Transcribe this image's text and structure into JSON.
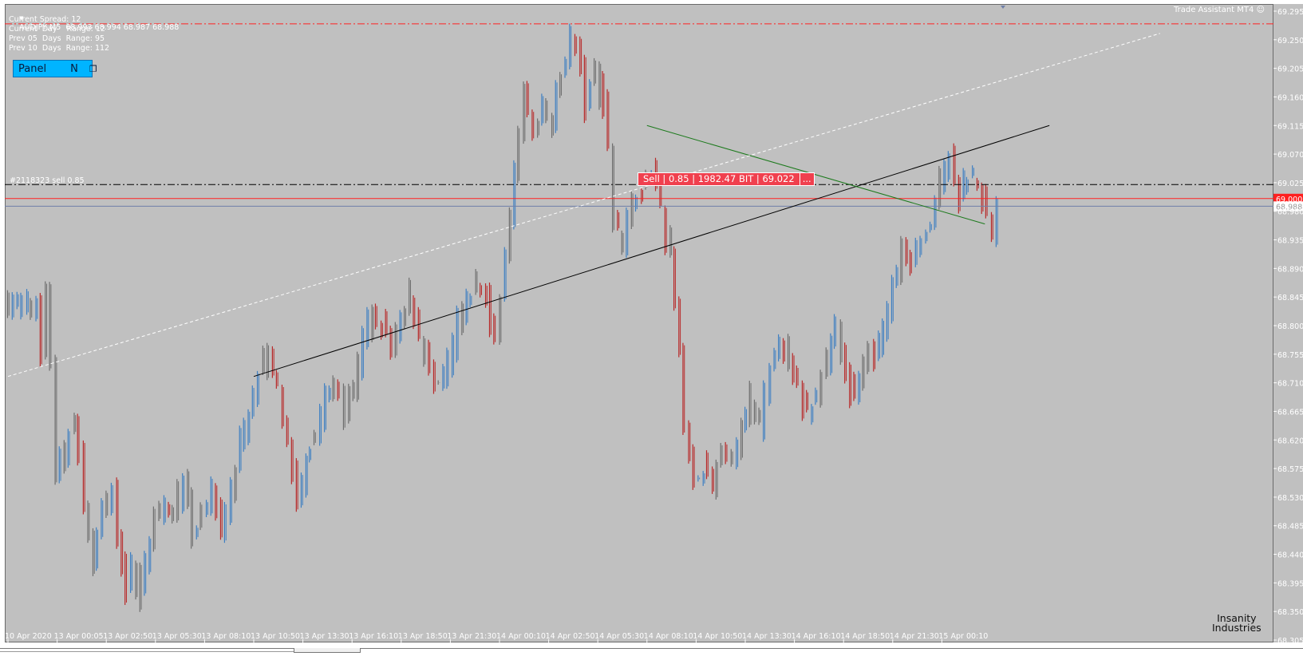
{
  "chart_info": {
    "symbol_line": "AUDJPY,M5  68.993 68.994 68.987 68.988",
    "spread_line": "Current Spread: 12",
    "day_range_line": "Current  Day    Range: 12",
    "prev5_line": "Prev 05  Days  Range: 95",
    "prev10_line": "Prev 10  Days  Range: 112"
  },
  "panel_button": {
    "label": "Panel",
    "n_label": "N",
    "icon": "window-restore-icon"
  },
  "trade_assistant": "Trade Assistant MT4",
  "order_line_label": "#2118323 sell 0.85",
  "trade_label": {
    "text": "Sell | 0.85 | 1982.47 BIT | 69.022",
    "more": "..."
  },
  "logo": {
    "line1": "Insanity",
    "line2": "Industries"
  },
  "colors": {
    "background": "#c0c0c0",
    "bull": "#3e7fc2",
    "bear": "#b82a2a",
    "neutral": "#6e6e6e",
    "support": "#000000",
    "resistance": "#1c7a1c",
    "order_line": "#ff2020"
  },
  "chart_data": {
    "type": "candlestick",
    "symbol": "AUDJPY",
    "timeframe": "M5",
    "ylim": [
      68.3,
      69.3
    ],
    "y_ticks": [
      "69.295",
      "69.250",
      "69.205",
      "69.160",
      "69.115",
      "69.070",
      "69.025",
      "68.980",
      "68.935",
      "68.890",
      "68.845",
      "68.800",
      "68.755",
      "68.710",
      "68.665",
      "68.620",
      "68.575",
      "68.530",
      "68.485",
      "68.440",
      "68.395",
      "68.350",
      "68.305"
    ],
    "x_ticks": [
      "10 Apr 2020",
      "13 Apr 00:05",
      "13 Apr 02:50",
      "13 Apr 05:30",
      "13 Apr 08:10",
      "13 Apr 10:50",
      "13 Apr 13:30",
      "13 Apr 16:10",
      "13 Apr 18:50",
      "13 Apr 21:30",
      "14 Apr 00:10",
      "14 Apr 02:50",
      "14 Apr 05:30",
      "14 Apr 08:10",
      "14 Apr 10:50",
      "14 Apr 13:30",
      "14 Apr 16:10",
      "14 Apr 18:50",
      "14 Apr 21:30",
      "15 Apr 00:10"
    ],
    "close_path": [
      [
        0,
        68.83
      ],
      [
        2,
        68.84
      ],
      [
        4,
        68.83
      ],
      [
        6,
        68.84
      ],
      [
        7,
        68.76
      ],
      [
        8,
        68.86
      ],
      [
        9,
        68.74
      ],
      [
        10,
        68.57
      ],
      [
        12,
        68.6
      ],
      [
        14,
        68.66
      ],
      [
        16,
        68.52
      ],
      [
        18,
        68.42
      ],
      [
        20,
        68.5
      ],
      [
        22,
        68.54
      ],
      [
        23,
        68.46
      ],
      [
        25,
        68.39
      ],
      [
        26,
        68.42
      ],
      [
        27,
        68.37
      ],
      [
        29,
        68.43
      ],
      [
        31,
        68.5
      ],
      [
        33,
        68.52
      ],
      [
        35,
        68.5
      ],
      [
        37,
        68.56
      ],
      [
        39,
        68.47
      ],
      [
        41,
        68.51
      ],
      [
        43,
        68.54
      ],
      [
        45,
        68.48
      ],
      [
        47,
        68.54
      ],
      [
        49,
        68.62
      ],
      [
        51,
        68.66
      ],
      [
        53,
        68.73
      ],
      [
        55,
        68.75
      ],
      [
        57,
        68.7
      ],
      [
        59,
        68.62
      ],
      [
        61,
        68.52
      ],
      [
        63,
        68.6
      ],
      [
        65,
        68.63
      ],
      [
        67,
        68.68
      ],
      [
        69,
        68.71
      ],
      [
        71,
        68.67
      ],
      [
        73,
        68.7
      ],
      [
        75,
        68.78
      ],
      [
        77,
        68.82
      ],
      [
        79,
        68.8
      ],
      [
        81,
        68.76
      ],
      [
        83,
        68.8
      ],
      [
        85,
        68.85
      ],
      [
        87,
        68.78
      ],
      [
        89,
        68.73
      ],
      [
        91,
        68.7
      ],
      [
        93,
        68.74
      ],
      [
        95,
        68.8
      ],
      [
        97,
        68.84
      ],
      [
        99,
        68.86
      ],
      [
        101,
        68.84
      ],
      [
        103,
        68.78
      ],
      [
        105,
        68.9
      ],
      [
        107,
        69.05
      ],
      [
        109,
        69.16
      ],
      [
        111,
        69.1
      ],
      [
        113,
        69.14
      ],
      [
        115,
        69.12
      ],
      [
        117,
        69.2
      ],
      [
        119,
        69.25
      ],
      [
        120,
        69.24
      ],
      [
        122,
        69.15
      ],
      [
        124,
        69.2
      ],
      [
        126,
        69.15
      ],
      [
        127,
        69.08
      ],
      [
        128,
        68.96
      ],
      [
        130,
        68.93
      ],
      [
        132,
        69.0
      ],
      [
        134,
        69.02
      ],
      [
        136,
        69.05
      ],
      [
        138,
        68.98
      ],
      [
        140,
        68.9
      ],
      [
        142,
        68.76
      ],
      [
        143,
        68.64
      ],
      [
        145,
        68.56
      ],
      [
        147,
        68.58
      ],
      [
        149,
        68.55
      ],
      [
        151,
        68.6
      ],
      [
        153,
        68.58
      ],
      [
        155,
        68.64
      ],
      [
        157,
        68.68
      ],
      [
        159,
        68.64
      ],
      [
        161,
        68.73
      ],
      [
        163,
        68.78
      ],
      [
        165,
        68.74
      ],
      [
        167,
        68.7
      ],
      [
        169,
        68.66
      ],
      [
        171,
        68.7
      ],
      [
        173,
        68.74
      ],
      [
        175,
        68.79
      ],
      [
        177,
        68.72
      ],
      [
        179,
        68.68
      ],
      [
        181,
        68.75
      ],
      [
        183,
        68.76
      ],
      [
        185,
        68.8
      ],
      [
        187,
        68.86
      ],
      [
        189,
        68.92
      ],
      [
        191,
        68.9
      ],
      [
        193,
        68.94
      ],
      [
        195,
        68.96
      ],
      [
        197,
        69.02
      ],
      [
        199,
        69.06
      ],
      [
        201,
        69.0
      ],
      [
        203,
        69.04
      ],
      [
        205,
        69.02
      ],
      [
        207,
        68.97
      ],
      [
        208,
        68.95
      ],
      [
        209,
        68.985
      ]
    ],
    "horizontal_lines": [
      {
        "name": "upper-dashdot",
        "price": 69.275,
        "color": "#ff2020",
        "style": "dash-dot"
      },
      {
        "name": "order-line",
        "price": 69.022,
        "color": "#000000",
        "style": "dash-dot"
      },
      {
        "name": "level-69000",
        "price": 69.0,
        "color": "#ff2020",
        "style": "solid",
        "axis_label": "69.000"
      },
      {
        "name": "bid-line",
        "price": 68.988,
        "color": "#6f7fa8",
        "style": "solid",
        "axis_label": "68.988"
      }
    ],
    "trendlines": [
      {
        "name": "support",
        "color": "#000000",
        "style": "solid",
        "from": [
          "13 Apr 10:50",
          68.72
        ],
        "to": [
          "15 Apr 06:00",
          69.115
        ]
      },
      {
        "name": "resistance",
        "color": "#1c7a1c",
        "style": "solid",
        "from": [
          "14 Apr 08:10",
          69.115
        ],
        "to": [
          "15 Apr 02:30",
          68.96
        ]
      },
      {
        "name": "channel",
        "color": "#ffffff",
        "style": "dotted",
        "from": [
          "10 Apr 2020",
          68.72
        ],
        "to": [
          "15 Apr 12:00",
          69.26
        ]
      }
    ]
  }
}
